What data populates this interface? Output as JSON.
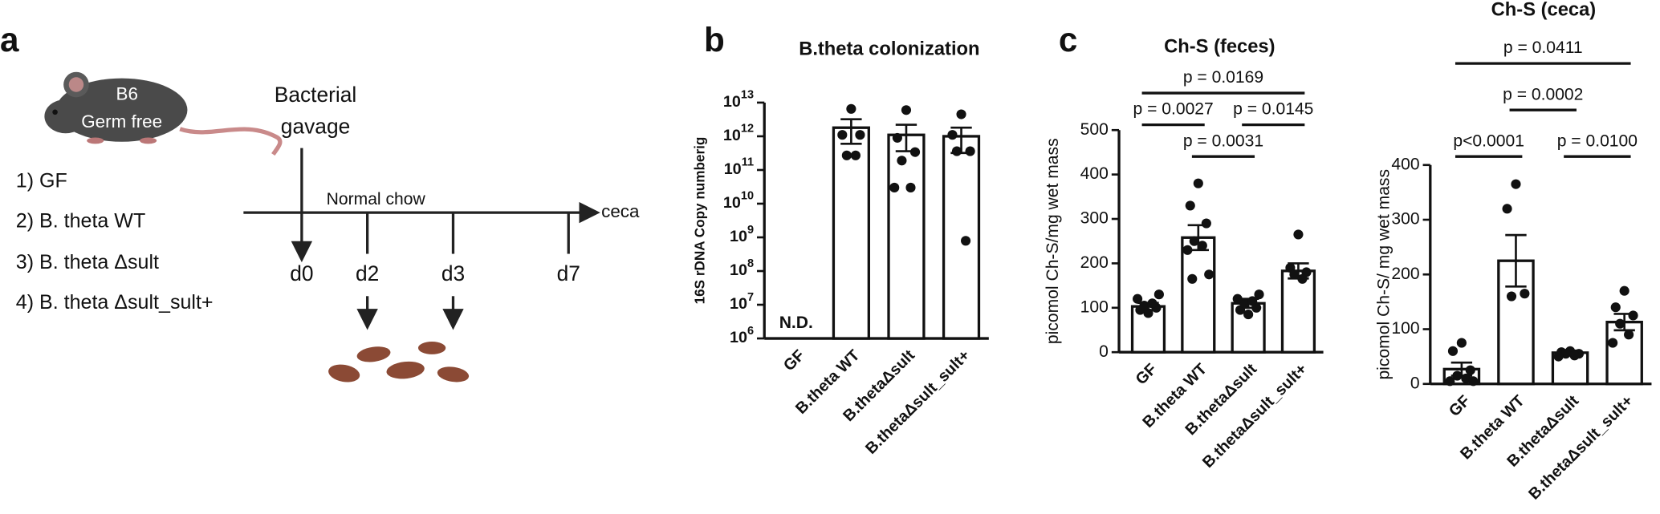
{
  "panel_a": {
    "label": "a",
    "mouse": [
      "B6",
      "Germ free"
    ],
    "gavage": [
      "Bacterial",
      "gavage"
    ],
    "groups": [
      "1) GF",
      "2) B. theta WT",
      "3) B. theta Δsult",
      "4) B. theta Δsult_sult+"
    ],
    "diet": "Normal chow",
    "endpoint": "ceca",
    "days": [
      "d0",
      "d2",
      "d3",
      "d7"
    ]
  },
  "chart_data": [
    {
      "type": "bar",
      "panel": "b",
      "title": "B.theta colonization",
      "y_label": "16S rDNA Copy numberig",
      "log": true,
      "categories": [
        "GF",
        "B.theta WT",
        "B.thetaΔsult",
        "B.thetaΔsult_sult+"
      ],
      "values": [
        null,
        1800000000000,
        1100000000000,
        1000000000000
      ],
      "error_low": [
        null,
        600000000000,
        360000000000,
        320000000000
      ],
      "error_high": [
        null,
        3200000000000,
        2200000000000,
        1800000000000
      ],
      "points": [
        [],
        [
          6500000000000,
          1100000000000,
          1100000000000,
          270000000000,
          270000000000
        ],
        [
          6000000000000,
          900000000000,
          340000000000,
          190000000000,
          30000000000,
          30000000000
        ],
        [
          4500000000000,
          1100000000000,
          360000000000,
          360000000000,
          790000000
        ]
      ],
      "annotations": [
        {
          "text": "N.D.",
          "category": "GF"
        }
      ],
      "ylim": [
        1000000,
        10000000000000
      ],
      "yticks": [
        {
          "value": 1000000,
          "label": "10^6"
        },
        {
          "value": 10000000,
          "label": "10^7"
        },
        {
          "value": 100000000,
          "label": "10^8"
        },
        {
          "value": 1000000000,
          "label": "10^9"
        },
        {
          "value": 10000000000,
          "label": "10^10"
        },
        {
          "value": 100000000000,
          "label": "10^11"
        },
        {
          "value": 1000000000000,
          "label": "10^12"
        },
        {
          "value": 10000000000000,
          "label": "10^13"
        }
      ],
      "comparisons": []
    },
    {
      "type": "bar",
      "panel": "c",
      "title": "Ch-S (feces)",
      "y_label": "picomol Ch-S/mg wet mass",
      "categories": [
        "GF",
        "B.theta WT",
        "B.thetaΔsult",
        "B.thetaΔsult_sult+"
      ],
      "values": [
        103,
        258,
        110,
        183
      ],
      "errors": [
        8,
        28,
        10,
        17
      ],
      "points": [
        [
          88,
          95,
          100,
          105,
          110,
          120,
          130
        ],
        [
          380,
          330,
          290,
          250,
          240,
          230,
          175,
          165
        ],
        [
          85,
          95,
          100,
          110,
          115,
          120,
          130
        ],
        [
          265,
          190,
          180,
          175,
          165
        ]
      ],
      "ylim": [
        0,
        500
      ],
      "yticks": [
        0,
        100,
        200,
        300,
        400,
        500
      ],
      "comparisons": [
        {
          "from": "B.theta WT",
          "to": "B.thetaΔsult",
          "label": "p = 0.0031"
        },
        {
          "from": "GF",
          "to": "B.theta WT",
          "label": "p = 0.0027"
        },
        {
          "from": "B.thetaΔsult",
          "to": "B.thetaΔsult_sult+",
          "label": "p = 0.0145"
        },
        {
          "from": "GF",
          "to": "B.thetaΔsult_sult+",
          "label": "p = 0.0169"
        }
      ]
    },
    {
      "type": "bar",
      "title": "Ch-S (ceca)",
      "y_label": "picomol Ch-S/ mg wet mass",
      "categories": [
        "GF",
        "B.theta WT",
        "B.thetaΔsult",
        "B.thetaΔsult_sult+"
      ],
      "values": [
        27,
        225,
        57,
        113
      ],
      "errors": [
        12,
        47,
        4,
        15
      ],
      "points": [
        [
          75,
          60,
          25,
          15,
          10,
          5,
          5
        ],
        [
          365,
          320,
          165,
          160
        ],
        [
          60,
          58,
          55,
          55,
          52,
          50
        ],
        [
          170,
          140,
          125,
          110,
          90,
          75
        ]
      ],
      "ylim": [
        0,
        400
      ],
      "yticks": [
        0,
        100,
        200,
        300,
        400
      ],
      "comparisons": [
        {
          "from": "GF",
          "to": "B.theta WT",
          "label": "p<0.0001"
        },
        {
          "from": "B.thetaΔsult",
          "to": "B.thetaΔsult_sult+",
          "label": "p = 0.0100"
        },
        {
          "from": "B.theta WT",
          "to": "B.thetaΔsult",
          "label": "p = 0.0002"
        },
        {
          "from": "GF",
          "to": "B.thetaΔsult_sult+",
          "label": "p = 0.0411"
        }
      ]
    }
  ]
}
